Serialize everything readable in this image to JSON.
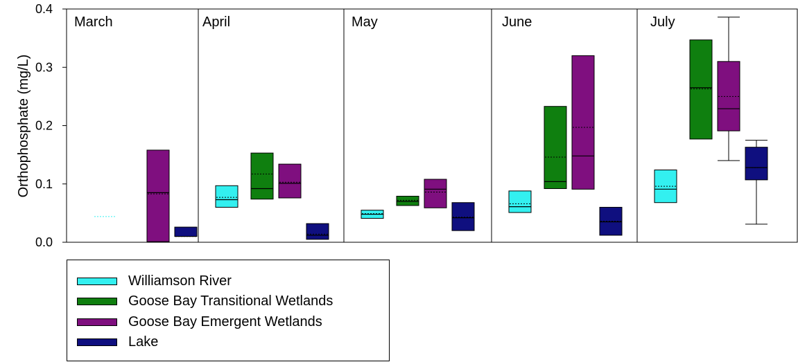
{
  "chart_data": {
    "type": "box",
    "ylabel": "Orthophosphate (mg/L)",
    "ylim": [
      0,
      0.4
    ],
    "yticks": [
      "0.0",
      "0.1",
      "0.2",
      "0.3",
      "0.4"
    ],
    "ytick_values": [
      0,
      0.1,
      0.2,
      0.3,
      0.4
    ],
    "panels": [
      "March",
      "April",
      "May",
      "June",
      "July"
    ],
    "series": [
      {
        "name": "Williamson River",
        "color": "#33f0f0",
        "boxes": [
          {
            "month": "March",
            "q1": 0.044,
            "median": 0.044,
            "q3": 0.044,
            "mean": 0.044
          },
          {
            "month": "April",
            "q1": 0.06,
            "median": 0.073,
            "q3": 0.097,
            "mean": 0.077
          },
          {
            "month": "May",
            "q1": 0.041,
            "median": 0.048,
            "q3": 0.055,
            "mean": 0.049
          },
          {
            "month": "June",
            "q1": 0.051,
            "median": 0.061,
            "q3": 0.088,
            "mean": 0.066
          },
          {
            "month": "July",
            "q1": 0.068,
            "median": 0.091,
            "q3": 0.124,
            "mean": 0.096
          }
        ]
      },
      {
        "name": "Goose Bay Transitional Wetlands",
        "color": "#0f7f0f",
        "boxes": [
          {
            "month": "April",
            "q1": 0.074,
            "median": 0.092,
            "q3": 0.153,
            "mean": 0.117
          },
          {
            "month": "May",
            "q1": 0.063,
            "median": 0.07,
            "q3": 0.079,
            "mean": 0.072
          },
          {
            "month": "June",
            "q1": 0.092,
            "median": 0.104,
            "q3": 0.233,
            "mean": 0.146
          },
          {
            "month": "July",
            "q1": 0.177,
            "median": 0.265,
            "q3": 0.347,
            "mean": 0.263
          }
        ]
      },
      {
        "name": "Goose Bay Emergent Wetlands",
        "color": "#7f0f7f",
        "boxes": [
          {
            "month": "March",
            "q1": 0.001,
            "median": 0.085,
            "q3": 0.158,
            "mean": 0.083
          },
          {
            "month": "April",
            "q1": 0.076,
            "median": 0.101,
            "q3": 0.134,
            "mean": 0.103
          },
          {
            "month": "May",
            "q1": 0.059,
            "median": 0.091,
            "q3": 0.108,
            "mean": 0.086
          },
          {
            "month": "June",
            "q1": 0.091,
            "median": 0.148,
            "q3": 0.32,
            "mean": 0.197
          },
          {
            "month": "July",
            "q1": 0.191,
            "median": 0.229,
            "q3": 0.31,
            "mean": 0.25,
            "whisker_low": 0.14,
            "whisker_high": 0.386
          }
        ]
      },
      {
        "name": "Lake",
        "color": "#0f0f7f",
        "boxes": [
          {
            "month": "March",
            "q1": 0.01,
            "median": 0.01,
            "q3": 0.026,
            "mean": 0.01
          },
          {
            "month": "April",
            "q1": 0.005,
            "median": 0.012,
            "q3": 0.032,
            "mean": 0.014
          },
          {
            "month": "May",
            "q1": 0.02,
            "median": 0.042,
            "q3": 0.068,
            "mean": 0.043
          },
          {
            "month": "June",
            "q1": 0.012,
            "median": 0.035,
            "q3": 0.06,
            "mean": 0.036
          },
          {
            "month": "July",
            "q1": 0.107,
            "median": 0.128,
            "q3": 0.163,
            "mean": 0.128,
            "whisker_low": 0.031,
            "whisker_high": 0.175
          }
        ]
      }
    ],
    "grid": false,
    "legend_position": "bottom-left"
  }
}
